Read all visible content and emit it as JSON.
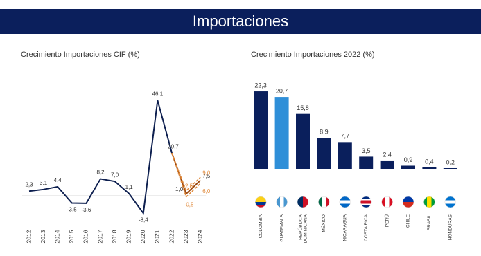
{
  "header": {
    "title": "Importaciones"
  },
  "chart_data": [
    {
      "type": "line",
      "title": "Crecimiento Importaciones CIF (%)",
      "categories": [
        "2012",
        "2013",
        "2014",
        "2015",
        "2016",
        "2017",
        "2018",
        "2019",
        "2020",
        "2021",
        "2022",
        "2023",
        "2024"
      ],
      "ylim": [
        -10,
        50
      ],
      "series": [
        {
          "color": "#0d1f4f",
          "style": "solid",
          "values": [
            2.3,
            3.1,
            4.4,
            -3.5,
            -3.6,
            8.2,
            7.0,
            1.1,
            -8.4,
            46.1,
            20.7,
            null,
            null
          ],
          "value_labels": [
            "2,3",
            "3,1",
            "4,4",
            "-3,5",
            "-3,6",
            "8,2",
            "7,0",
            "1,1",
            "-8,4",
            "46,1",
            "20,7",
            null,
            null
          ]
        },
        {
          "color": "#9b4a12",
          "style": "solid",
          "values": [
            null,
            null,
            null,
            null,
            null,
            null,
            null,
            null,
            null,
            null,
            20.7,
            1.0,
            7.5
          ],
          "value_labels": [
            null,
            null,
            null,
            null,
            null,
            null,
            null,
            null,
            null,
            null,
            null,
            "1,0",
            "7,5"
          ]
        },
        {
          "color": "#e08a3c",
          "style": "dashed",
          "values": [
            null,
            null,
            null,
            null,
            null,
            null,
            null,
            null,
            null,
            null,
            20.7,
            2.5,
            9.0
          ],
          "value_labels": [
            null,
            null,
            null,
            null,
            null,
            null,
            null,
            null,
            null,
            null,
            null,
            "2,5",
            "9,0"
          ]
        },
        {
          "color": "#e08a3c",
          "style": "dashed",
          "values": [
            null,
            null,
            null,
            null,
            null,
            null,
            null,
            null,
            null,
            null,
            20.7,
            -0.5,
            6.0
          ],
          "value_labels": [
            null,
            null,
            null,
            null,
            null,
            null,
            null,
            null,
            null,
            null,
            null,
            "-0,5",
            "6,0"
          ]
        }
      ]
    },
    {
      "type": "bar",
      "title": "Crecimiento Importaciones 2022 (%)",
      "categories": [
        "COLOMBIA",
        "GUATEMALA",
        "REPÚBLICA DOMINICANA",
        "MÉXICO",
        "NICARAGUA",
        "COSTA RICA",
        "PERÚ",
        "CHILE",
        "BRASIL",
        "HONDURAS"
      ],
      "values": [
        22.3,
        20.7,
        15.8,
        8.9,
        7.7,
        3.5,
        2.4,
        0.9,
        0.4,
        0.2
      ],
      "value_labels": [
        "22,3",
        "20,7",
        "15,8",
        "8,9",
        "7,7",
        "3,5",
        "2,4",
        "0,9",
        "0,4",
        "0,2"
      ],
      "colors": [
        "#0a1f5c",
        "#2f8fd8",
        "#0a1f5c",
        "#0a1f5c",
        "#0a1f5c",
        "#0a1f5c",
        "#0a1f5c",
        "#0a1f5c",
        "#0a1f5c",
        "#0a1f5c"
      ],
      "ylim": [
        0,
        25
      ]
    }
  ]
}
